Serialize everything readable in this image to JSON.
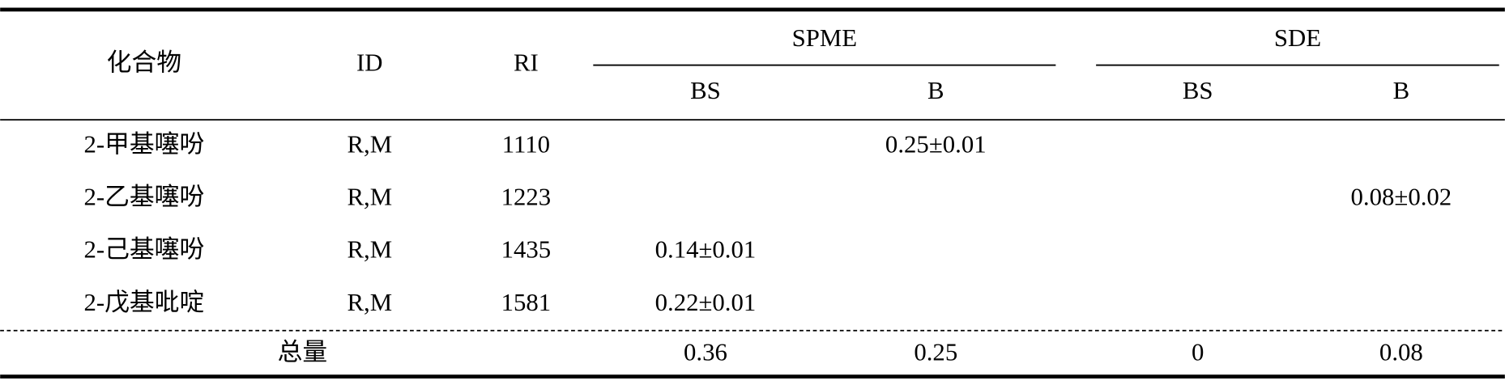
{
  "table": {
    "header": {
      "compound": "化合物",
      "id": "ID",
      "ri": "RI",
      "groups": [
        {
          "name": "SPME",
          "columns": [
            "BS",
            "B"
          ]
        },
        {
          "name": "SDE",
          "columns": [
            "BS",
            "B"
          ]
        }
      ]
    },
    "rows": [
      [
        "2-甲基噻吩",
        "R,M",
        1110,
        null,
        "0.25±0.01",
        null,
        null
      ],
      [
        "2-乙基噻吩",
        "R,M",
        1223,
        null,
        null,
        null,
        "0.08±0.02"
      ],
      [
        "2-己基噻吩",
        "R,M",
        1435,
        "0.14±0.01",
        null,
        null,
        null
      ],
      [
        "2-戊基吡啶",
        "R,M",
        1581,
        "0.22±0.01",
        null,
        null,
        null
      ]
    ],
    "total": {
      "label": "总量",
      "values": [
        0.36,
        0.25,
        0,
        0.08
      ]
    }
  }
}
